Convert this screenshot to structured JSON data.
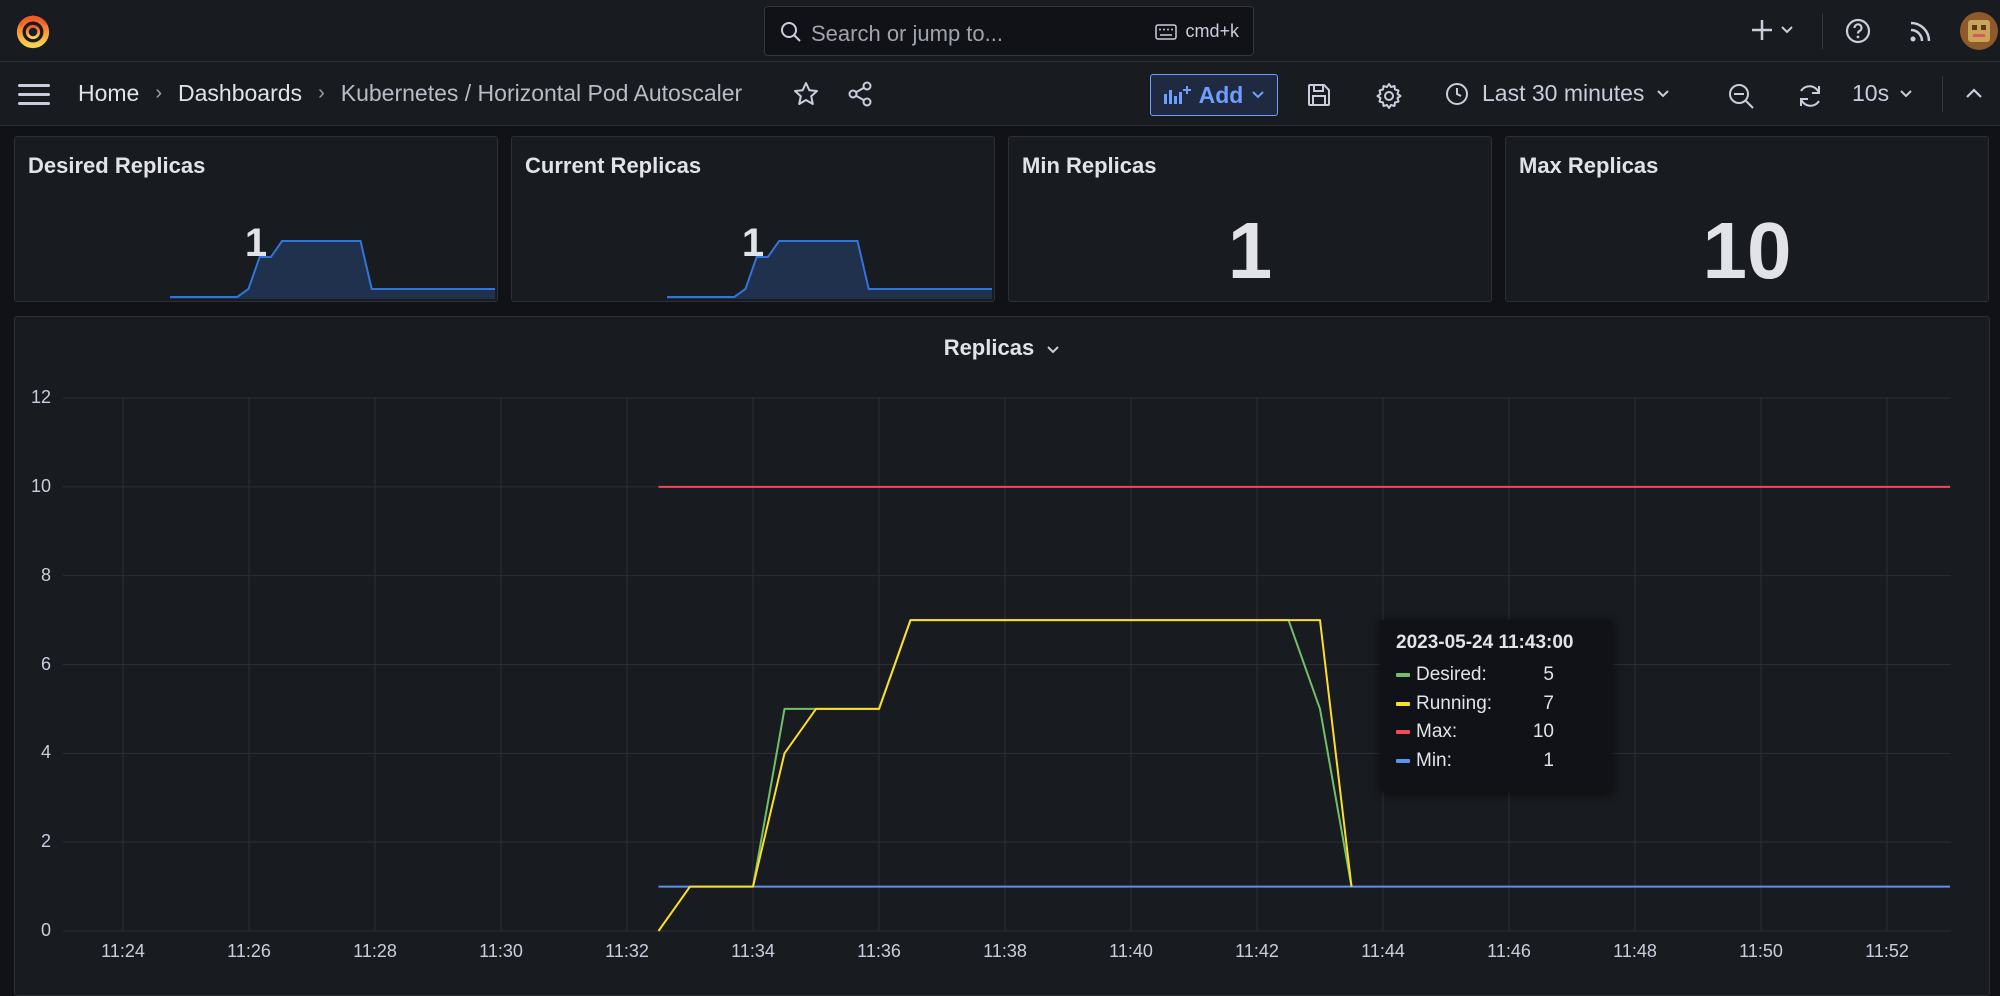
{
  "search": {
    "placeholder": "Search or jump to...",
    "shortcut": "cmd+k"
  },
  "breadcrumbs": [
    "Home",
    "Dashboards",
    "Kubernetes / Horizontal Pod Autoscaler"
  ],
  "toolbar": {
    "add_label": "Add",
    "time_range": "Last 30 minutes",
    "refresh_interval": "10s"
  },
  "colors": {
    "desired": "#73bf69",
    "running": "#fade2a",
    "max": "#f2495c",
    "min": "#5794f2",
    "spark": "#3274d9"
  },
  "stats": [
    {
      "title": "Desired Replicas",
      "value": "1",
      "sparkline": [
        0,
        0,
        0,
        0,
        0,
        0,
        0,
        1,
        5,
        5,
        7,
        7,
        7,
        7,
        7,
        7,
        7,
        7,
        1,
        1,
        1,
        1,
        1,
        1,
        1,
        1,
        1,
        1,
        1,
        1
      ]
    },
    {
      "title": "Current Replicas",
      "value": "1",
      "sparkline": [
        0,
        0,
        0,
        0,
        0,
        0,
        0,
        1,
        5,
        5,
        7,
        7,
        7,
        7,
        7,
        7,
        7,
        7,
        1,
        1,
        1,
        1,
        1,
        1,
        1,
        1,
        1,
        1,
        1,
        1
      ]
    },
    {
      "title": "Min Replicas",
      "value": "1"
    },
    {
      "title": "Max Replicas",
      "value": "10"
    }
  ],
  "chart_data": {
    "type": "line",
    "title": "Replicas",
    "ylim": [
      0,
      12
    ],
    "yticks": [
      0,
      2,
      4,
      6,
      8,
      10,
      12
    ],
    "xticks": [
      "11:24",
      "11:26",
      "11:28",
      "11:30",
      "11:32",
      "11:34",
      "11:36",
      "11:38",
      "11:40",
      "11:42",
      "11:44",
      "11:46",
      "11:48",
      "11:50",
      "11:52"
    ],
    "grid": true,
    "series": [
      {
        "name": "Desired",
        "color": "#73bf69",
        "x": [
          "11:34:00",
          "11:34:30",
          "11:35:00",
          "11:36:00",
          "11:36:30",
          "11:42:30",
          "11:43:00",
          "11:43:30"
        ],
        "y": [
          1,
          5,
          5,
          5,
          7,
          7,
          5,
          1
        ]
      },
      {
        "name": "Running",
        "color": "#fade2a",
        "x": [
          "11:32:30",
          "11:33:00",
          "11:34:00",
          "11:34:30",
          "11:35:00",
          "11:36:00",
          "11:36:30",
          "11:43:00",
          "11:43:30"
        ],
        "y": [
          0,
          1,
          1,
          4,
          5,
          5,
          7,
          7,
          1
        ]
      },
      {
        "name": "Max",
        "color": "#f2495c",
        "x": [
          "11:32:30",
          "11:53:00"
        ],
        "y": [
          10,
          10
        ]
      },
      {
        "name": "Min",
        "color": "#5794f2",
        "x": [
          "11:32:30",
          "11:53:00"
        ],
        "y": [
          1,
          1
        ]
      }
    ],
    "tooltip": {
      "time": "2023-05-24 11:43:00",
      "rows": [
        {
          "name": "Desired:",
          "value": "5",
          "color": "#73bf69"
        },
        {
          "name": "Running:",
          "value": "7",
          "color": "#fade2a"
        },
        {
          "name": "Max:",
          "value": "10",
          "color": "#f2495c"
        },
        {
          "name": "Min:",
          "value": "1",
          "color": "#5794f2"
        }
      ]
    }
  }
}
